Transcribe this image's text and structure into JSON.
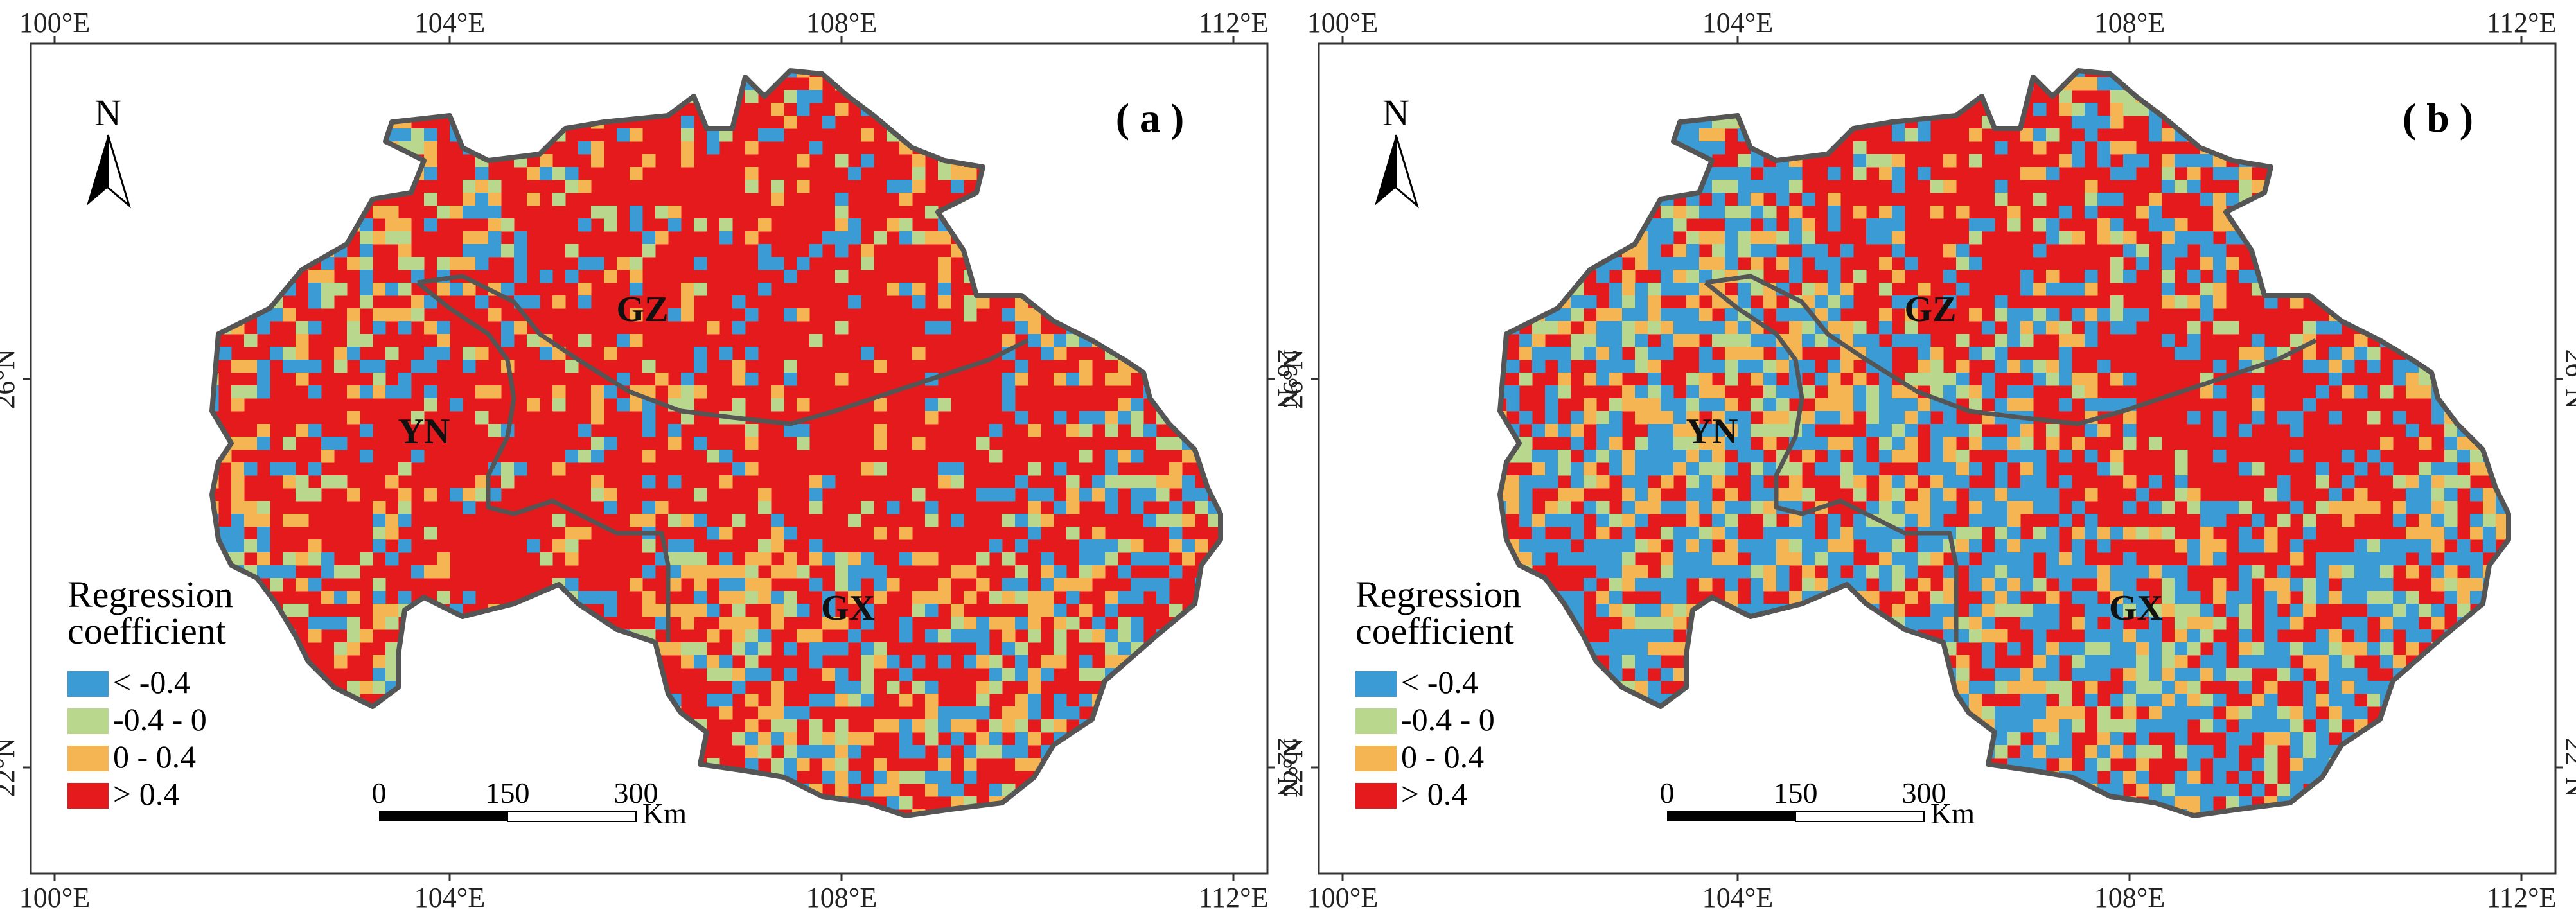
{
  "colors": {
    "lt_neg04": "#3a9bd5",
    "neg04_0": "#b9d88e",
    "p0_04": "#f5b552",
    "gt_04": "#e41a1c",
    "boundary": "#555555"
  },
  "panels": [
    {
      "label": "( a )",
      "seed": 11,
      "bias": [
        0.2,
        0.12,
        0.18,
        0.5
      ],
      "hot": [
        [
          0.49,
          0.22
        ],
        [
          0.28,
          0.56
        ],
        [
          0.65,
          0.46
        ]
      ],
      "lon_labels_top": [
        "100°E",
        "104°E",
        "108°E",
        "112°E"
      ],
      "lon_labels_bottom": [
        "100°E",
        "104°E",
        "108°E",
        "112°E"
      ],
      "lat_labels_left": [
        "26°N",
        "22°N"
      ],
      "lat_labels_right": [
        "26°N",
        "22°N"
      ],
      "north": "N",
      "provinces": [
        "GZ",
        "YN",
        "GX"
      ],
      "legend": {
        "title_line1": "Regression",
        "title_line2": "coefficient",
        "items": [
          "< -0.4",
          "-0.4 - 0",
          "0 - 0.4",
          "> 0.4"
        ]
      },
      "scale": {
        "labels": [
          "0",
          "150",
          "300"
        ],
        "unit": "Km"
      }
    },
    {
      "label": "( b )",
      "seed": 29,
      "bias": [
        0.38,
        0.14,
        0.2,
        0.28
      ],
      "hot": [
        [
          0.48,
          0.18
        ],
        [
          0.72,
          0.47
        ]
      ],
      "lon_labels_top": [
        "100°E",
        "104°E",
        "108°E",
        "112°E"
      ],
      "lon_labels_bottom": [
        "100°E",
        "104°E",
        "108°E",
        "112°E"
      ],
      "lat_labels_left": [
        "26°N",
        "22°N"
      ],
      "lat_labels_right": [
        "26°N",
        "22°N"
      ],
      "north": "N",
      "provinces": [
        "GZ",
        "YN",
        "GX"
      ],
      "legend": {
        "title_line1": "Regression",
        "title_line2": "coefficient",
        "items": [
          "< -0.4",
          "-0.4 - 0",
          "0 - 0.4",
          "> 0.4"
        ]
      },
      "scale": {
        "labels": [
          "0",
          "150",
          "300"
        ],
        "unit": "Km"
      }
    }
  ]
}
